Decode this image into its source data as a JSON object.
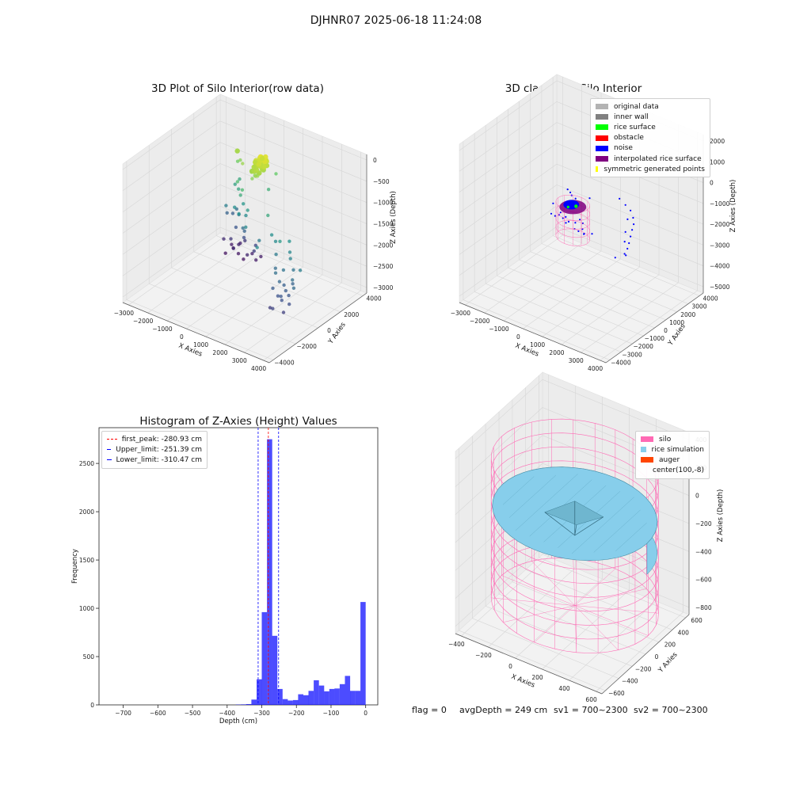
{
  "figure": {
    "title": "DJHNR07 2025-06-18 11:24:08"
  },
  "footer": {
    "flag": "flag = 0",
    "avg": "avgDepth = 249 cm",
    "sv1": "sv1 = 700~2300",
    "sv2": "sv2 = 700~2300"
  },
  "chart_data": [
    {
      "type": "scatter",
      "title": "3D Plot of Silo Interior(row data)",
      "xlabel": "X Axies",
      "ylabel": "Y Axies",
      "zlabel": "Z Axies (Depth)",
      "xticks": [
        "−3000",
        "−2000",
        "−1000",
        "0",
        "1000",
        "2000",
        "3000",
        "4000"
      ],
      "yticks": [
        "−4000",
        "−2000",
        "0",
        "2000",
        "4000"
      ],
      "zticks": [
        "0",
        "−500",
        "−1000",
        "−1500",
        "−2000",
        "−2500",
        "−3000"
      ],
      "xlim": [
        -3000,
        4000
      ],
      "ylim": [
        -4000,
        4000
      ],
      "zlim": [
        -3200,
        0
      ],
      "colormap": "viridis",
      "points": [
        [
          -1200,
          2400,
          -3000
        ],
        [
          -1500,
          2500,
          -2950
        ],
        [
          -1700,
          2200,
          -3050
        ],
        [
          -900,
          2300,
          -3050
        ],
        [
          -600,
          2100,
          -2850
        ],
        [
          -1200,
          2000,
          -2800
        ],
        [
          -600,
          2500,
          -2900
        ],
        [
          -1300,
          2600,
          -2850
        ],
        [
          -1700,
          2700,
          -2950
        ],
        [
          -1900,
          2400,
          -2800
        ],
        [
          -300,
          2300,
          -2950
        ],
        [
          -300,
          2700,
          -2950
        ],
        [
          -1000,
          2600,
          -2700
        ],
        [
          -1400,
          2900,
          -2900
        ],
        [
          -1500,
          2300,
          -2700
        ],
        [
          -100,
          1800,
          -2600
        ],
        [
          -200,
          2100,
          -2550
        ],
        [
          -700,
          2000,
          -2450
        ],
        [
          -1200,
          2200,
          -2350
        ],
        [
          -1700,
          2800,
          -2250
        ],
        [
          -1800,
          2500,
          -2200
        ],
        [
          -500,
          1700,
          -2200
        ],
        [
          -400,
          1400,
          -2050
        ],
        [
          -1400,
          2600,
          -2050
        ],
        [
          -1000,
          2100,
          -2000
        ],
        [
          -1500,
          1900,
          -1850
        ],
        [
          -800,
          1400,
          -1650
        ],
        [
          -900,
          1900,
          -1350
        ],
        [
          -1300,
          2300,
          -1400
        ],
        [
          -1200,
          2500,
          -1300
        ],
        [
          -400,
          1200,
          -1250
        ],
        [
          300,
          2300,
          -1200
        ],
        [
          -200,
          1000,
          -1050
        ],
        [
          -600,
          1300,
          -1000
        ],
        [
          600,
          2400,
          -800
        ],
        [
          -1000,
          2000,
          -750
        ],
        [
          -700,
          1700,
          -600
        ],
        [
          -300,
          1200,
          -500
        ],
        [
          -900,
          1800,
          -450
        ],
        [
          200,
          600,
          -1750
        ],
        [
          -200,
          1300,
          -1700
        ],
        [
          -300,
          900,
          -1600
        ],
        [
          0,
          1100,
          -1500
        ],
        [
          -500,
          1600,
          -1550
        ],
        [
          2400,
          400,
          -1600
        ],
        [
          2600,
          100,
          -1750
        ],
        [
          2800,
          -200,
          -1800
        ],
        [
          2700,
          -600,
          -2000
        ],
        [
          2500,
          -900,
          -2050
        ],
        [
          3000,
          -300,
          -2000
        ],
        [
          3200,
          -700,
          -2200
        ],
        [
          3100,
          -1100,
          -2300
        ],
        [
          2900,
          -900,
          -2250
        ],
        [
          3300,
          -1200,
          -2350
        ],
        [
          3500,
          -1500,
          -2450
        ],
        [
          3400,
          -1800,
          -2600
        ],
        [
          2700,
          -1700,
          -2650
        ],
        [
          3000,
          -2000,
          -2550
        ],
        [
          3200,
          -1600,
          -2400
        ],
        [
          2200,
          -400,
          -2100
        ],
        [
          1800,
          300,
          -1700
        ],
        [
          1500,
          500,
          -1650
        ],
        [
          2000,
          0,
          -1900
        ],
        [
          3300,
          -900,
          -2050
        ],
        [
          2900,
          -1400,
          -2400
        ],
        [
          1500,
          -700,
          -1700
        ],
        [
          3600,
          -1300,
          -2100
        ],
        [
          2600,
          -1300,
          -2300
        ],
        [
          3100,
          -1500,
          -2350
        ],
        [
          900,
          500,
          -1900
        ],
        [
          1200,
          700,
          -1300
        ],
        [
          2300,
          -200,
          -1500
        ],
        [
          3500,
          -600,
          -1850
        ],
        [
          2800,
          -1100,
          -2150
        ],
        [
          400,
          1000,
          -600
        ],
        [
          550,
          1100,
          -550
        ],
        [
          600,
          900,
          -500
        ],
        [
          700,
          1200,
          -450
        ],
        [
          500,
          1300,
          -400
        ],
        [
          650,
          800,
          -520
        ],
        [
          450,
          700,
          -600
        ],
        [
          750,
          1000,
          -380
        ],
        [
          800,
          1300,
          -350
        ],
        [
          350,
          1200,
          -450
        ],
        [
          550,
          1450,
          -320
        ],
        [
          680,
          600,
          -480
        ],
        [
          300,
          900,
          -520
        ],
        [
          850,
          1100,
          -300
        ],
        [
          420,
          1350,
          -360
        ],
        [
          610,
          1250,
          -300
        ],
        [
          760,
          750,
          -420
        ],
        [
          520,
          950,
          -340
        ],
        [
          900,
          900,
          -280
        ],
        [
          380,
          800,
          -460
        ],
        [
          700,
          1400,
          -260
        ],
        [
          580,
          650,
          -400
        ],
        [
          480,
          1150,
          -300
        ],
        [
          820,
          1250,
          -240
        ],
        [
          640,
          1050,
          -220
        ],
        [
          540,
          850,
          -260
        ],
        [
          720,
          900,
          -300
        ],
        [
          460,
          1000,
          -240
        ],
        [
          600,
          1200,
          -180
        ],
        [
          780,
          1150,
          -200
        ],
        [
          360,
          1100,
          -320
        ],
        [
          660,
          700,
          -360
        ],
        [
          880,
          1000,
          -180
        ],
        [
          500,
          1250,
          -220
        ],
        [
          740,
          1300,
          -160
        ],
        [
          560,
          780,
          -300
        ],
        [
          420,
          900,
          -380
        ],
        [
          620,
          1100,
          -140
        ],
        [
          700,
          820,
          -240
        ],
        [
          520,
          1400,
          -260
        ]
      ]
    },
    {
      "type": "scatter",
      "title": "3D classify of Silo Interior",
      "xlabel": "X Axies",
      "ylabel": "Y Axies",
      "zlabel": "Z Axies (Depth)",
      "xticks": [
        "−3000",
        "−2000",
        "−1000",
        "0",
        "1000",
        "2000",
        "3000",
        "4000"
      ],
      "yticks": [
        "−4000",
        "−3000",
        "−2000",
        "−1000",
        "0",
        "1000",
        "2000",
        "3000",
        "4000"
      ],
      "zticks": [
        "−5000",
        "−4000",
        "−3000",
        "−2000",
        "−1000",
        "0",
        "1000",
        "2000"
      ],
      "xlim": [
        -3000,
        4000
      ],
      "ylim": [
        -4000,
        4000
      ],
      "zlim": [
        -5500,
        2000
      ],
      "legend": [
        {
          "label": "original data",
          "color": "#b3b3b3"
        },
        {
          "label": "inner wall",
          "color": "#808080"
        },
        {
          "label": "rice surface",
          "color": "#00ff00"
        },
        {
          "label": "obstacle",
          "color": "#ff0000"
        },
        {
          "label": "noise",
          "color": "#0000ff"
        },
        {
          "label": "interpolated rice surface",
          "color": "#800080"
        },
        {
          "label": "symmetric generated points",
          "color": "#ffff00"
        }
      ],
      "silo": {
        "radius": 700,
        "z_top": -1200,
        "z_bottom": -2800
      },
      "surface_center": [
        100,
        -8,
        -1250
      ],
      "noise_points": [
        [
          -2100,
          2000,
          -3400
        ],
        [
          -1900,
          2300,
          -3500
        ],
        [
          -1700,
          2500,
          -3600
        ],
        [
          -1500,
          2400,
          -3700
        ],
        [
          -1300,
          2600,
          -3750
        ],
        [
          -1100,
          2200,
          -3800
        ],
        [
          -900,
          2500,
          -3850
        ],
        [
          -700,
          2300,
          -3900
        ],
        [
          -500,
          2600,
          -3950
        ],
        [
          -1800,
          1800,
          -3300
        ],
        [
          -2300,
          2500,
          -3200
        ],
        [
          -1200,
          2800,
          -3650
        ],
        [
          -600,
          2100,
          -3800
        ],
        [
          -1600,
          2100,
          -3450
        ],
        [
          -1000,
          2700,
          -3700
        ],
        [
          -2000,
          2600,
          -3550
        ],
        [
          -800,
          2000,
          -3700
        ],
        [
          -1400,
          2000,
          -3550
        ],
        [
          2500,
          600,
          -800
        ],
        [
          2800,
          300,
          -900
        ],
        [
          3000,
          0,
          -1000
        ],
        [
          3100,
          -300,
          -1100
        ],
        [
          3200,
          -600,
          -1250
        ],
        [
          3300,
          -900,
          -1400
        ],
        [
          3400,
          -1200,
          -1500
        ],
        [
          3500,
          -1500,
          -1650
        ],
        [
          2200,
          700,
          -700
        ],
        [
          1800,
          900,
          -650
        ],
        [
          2900,
          -500,
          -1200
        ],
        [
          3150,
          -1000,
          -1350
        ],
        [
          2650,
          100,
          -950
        ],
        [
          3350,
          -1350,
          -1700
        ],
        [
          3050,
          -1600,
          -1900
        ],
        [
          -300,
          900,
          -1500
        ],
        [
          -600,
          1100,
          -1550
        ],
        [
          200,
          1200,
          -1400
        ],
        [
          -900,
          1500,
          -1700
        ],
        [
          -1200,
          1800,
          -1800
        ]
      ]
    },
    {
      "type": "histogram",
      "title": "Histogram of Z-Axies (Height) Values",
      "xlabel": "Depth (cm)",
      "ylabel": "Frequency",
      "xlim": [
        -770,
        35
      ],
      "ylim": [
        0,
        2870
      ],
      "xticks": [
        -700,
        -600,
        -500,
        -400,
        -300,
        -200,
        -100,
        0
      ],
      "yticks": [
        0,
        500,
        1000,
        1500,
        2000,
        2500
      ],
      "bin_width": 15,
      "bins": [
        {
          "x0": -375,
          "count": 3
        },
        {
          "x0": -360,
          "count": 5
        },
        {
          "x0": -345,
          "count": 8
        },
        {
          "x0": -330,
          "count": 55
        },
        {
          "x0": -315,
          "count": 265
        },
        {
          "x0": -300,
          "count": 960
        },
        {
          "x0": -285,
          "count": 2750
        },
        {
          "x0": -270,
          "count": 715
        },
        {
          "x0": -255,
          "count": 165
        },
        {
          "x0": -240,
          "count": 60
        },
        {
          "x0": -225,
          "count": 45
        },
        {
          "x0": -210,
          "count": 50
        },
        {
          "x0": -195,
          "count": 110
        },
        {
          "x0": -180,
          "count": 100
        },
        {
          "x0": -165,
          "count": 145
        },
        {
          "x0": -150,
          "count": 255
        },
        {
          "x0": -135,
          "count": 200
        },
        {
          "x0": -120,
          "count": 140
        },
        {
          "x0": -105,
          "count": 165
        },
        {
          "x0": -90,
          "count": 170
        },
        {
          "x0": -75,
          "count": 215
        },
        {
          "x0": -60,
          "count": 300
        },
        {
          "x0": -45,
          "count": 145
        },
        {
          "x0": -30,
          "count": 145
        },
        {
          "x0": -15,
          "count": 1065
        }
      ],
      "bar_color": "#0000ff",
      "vlines": [
        {
          "label": "first_peak: -280.93 cm",
          "x": -280.93,
          "color": "#ff0000"
        },
        {
          "label": "Upper_limit: -251.39 cm",
          "x": -251.39,
          "color": "#0000ff"
        },
        {
          "label": "Lower_limit: -310.47 cm",
          "x": -310.47,
          "color": "#0000ff"
        }
      ]
    },
    {
      "type": "surface",
      "title": "3D simulation of Silo Interior",
      "xlabel": "X Axies",
      "ylabel": "Y Axies",
      "zlabel": "Z Axies (Depth)",
      "xticks": [
        "−400",
        "−200",
        "0",
        "200",
        "400",
        "600"
      ],
      "yticks": [
        "−600",
        "−400",
        "−200",
        "0",
        "200",
        "400",
        "600"
      ],
      "zticks": [
        "−800",
        "−600",
        "−400",
        "−200",
        "0",
        "200",
        "400"
      ],
      "xlim": [
        -550,
        750
      ],
      "ylim": [
        -750,
        650
      ],
      "zlim": [
        -900,
        450
      ],
      "legend": [
        {
          "label": "silo",
          "color": "#ff69b4"
        },
        {
          "label": "rice simulation",
          "color": "#87ceeb"
        },
        {
          "label": "auger",
          "color": "#ff4500"
        },
        {
          "label": "center(100,-8)",
          "color": ""
        }
      ],
      "silo": {
        "center": [
          100,
          -8
        ],
        "radius": 650,
        "z_top": 250,
        "z_bottom": -780
      },
      "rice": {
        "z_top": -100,
        "z_bottom": -330,
        "dip_depth": -260
      }
    }
  ],
  "colors": {
    "silo_wire": "#ff69b4",
    "rice": "#87ceeb",
    "noise": "#0000ff",
    "pane": "#f2f2f2",
    "grid": "#d6d6d6"
  }
}
